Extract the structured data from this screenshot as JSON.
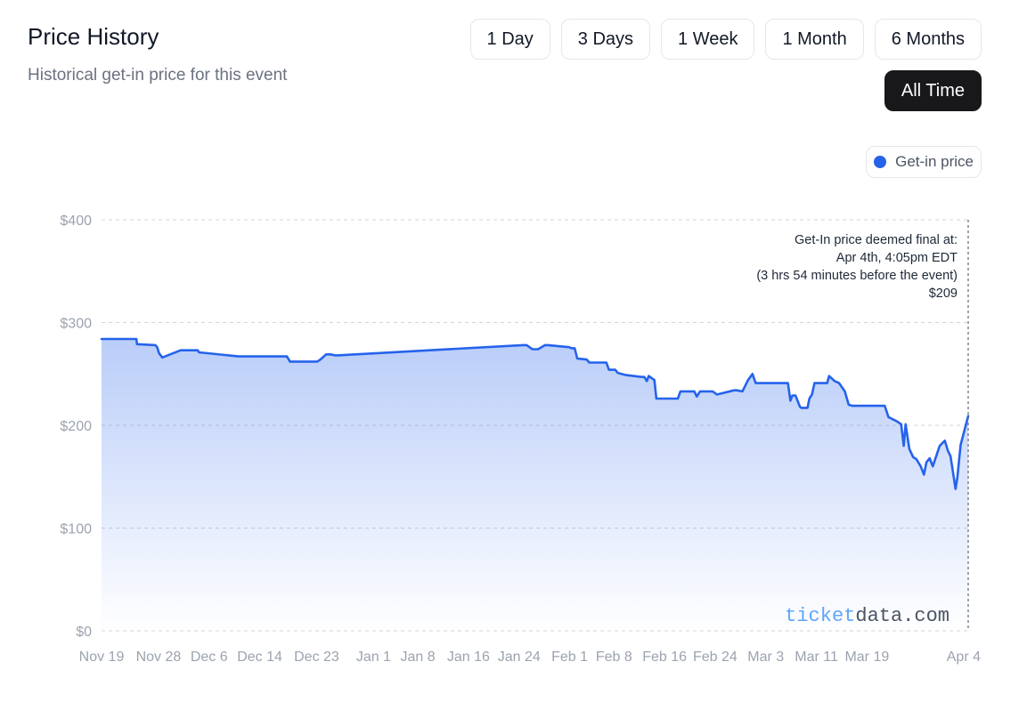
{
  "header": {
    "title": "Price History",
    "subtitle": "Historical get-in price for this event"
  },
  "ranges": [
    {
      "label": "1 Day",
      "active": false
    },
    {
      "label": "3 Days",
      "active": false
    },
    {
      "label": "1 Week",
      "active": false
    },
    {
      "label": "1 Month",
      "active": false
    },
    {
      "label": "6 Months",
      "active": false
    },
    {
      "label": "All Time",
      "active": true
    }
  ],
  "legend": {
    "label": "Get-in price",
    "color": "#2563eb"
  },
  "annotation": {
    "lines": [
      "Get-In price deemed final at:",
      "Apr 4th, 4:05pm EDT",
      "(3 hrs 54 minutes before the event)",
      "$209"
    ]
  },
  "watermark": {
    "part1": "ticket",
    "part2": "data.com",
    "color1": "#60a5fa",
    "color2": "#4b5563"
  },
  "chart_data": {
    "type": "area",
    "ylim": [
      0,
      400
    ],
    "yticks": [
      0,
      100,
      200,
      300,
      400
    ],
    "ytick_labels": [
      "$0",
      "$100",
      "$200",
      "$300",
      "$400"
    ],
    "x_tick_labels": [
      "Nov 19",
      "Nov 28",
      "Dec 6",
      "Dec 14",
      "Dec 23",
      "Jan 1",
      "Jan 8",
      "Jan 16",
      "Jan 24",
      "Feb 1",
      "Feb 8",
      "Feb 16",
      "Feb 24",
      "Mar 3",
      "Mar 11",
      "Mar 19",
      "Apr 4"
    ],
    "x_tick_days": [
      0,
      9,
      17,
      25,
      34,
      43,
      50,
      58,
      66,
      74,
      81,
      89,
      97,
      105,
      113,
      121,
      137
    ],
    "x_range_days": [
      0,
      137
    ],
    "grid": true,
    "series": [
      {
        "name": "Get-in price",
        "color": "#2563eb",
        "days": [
          0,
          5.5,
          5.6,
          8.5,
          8.8,
          9.1,
          9.6,
          12.5,
          15.2,
          15.4,
          21.7,
          22,
          29.3,
          29.8,
          34.1,
          34.6,
          35.5,
          36.2,
          37,
          66.6,
          67.2,
          68.1,
          69,
          70.1,
          70.6,
          73.9,
          74.3,
          74.8,
          75.2,
          76.7,
          77.1,
          79.8,
          80.2,
          81.2,
          81.6,
          82.8,
          85.4,
          85.8,
          86.2,
          86.5,
          87.4,
          87.7,
          91.1,
          91.5,
          93.7,
          94.1,
          94.6,
          96.6,
          97.3,
          100,
          100.4,
          101.3,
          102.2,
          102.9,
          103.4,
          104.2,
          104.5,
          108.5,
          108.9,
          109.2,
          109.7,
          110.4,
          110.6,
          111.6,
          111.9,
          112.3,
          112.7,
          114.7,
          115,
          115.9,
          116.6,
          117.5,
          118.1,
          118.7,
          123.8,
          124.4,
          125.7,
          126.4,
          126.8,
          127.1,
          127.7,
          128.3,
          128.8,
          129.5,
          130,
          130.4,
          130.9,
          131.4,
          132.5,
          133.3,
          133.8,
          134.2,
          135,
          135.3,
          135.8,
          137
        ],
        "values": [
          284,
          284,
          279,
          278,
          276,
          270,
          266,
          273,
          273,
          271,
          267,
          267,
          267,
          262,
          262,
          264,
          269,
          269,
          268,
          278,
          278,
          274,
          274,
          278,
          278,
          276,
          275,
          275,
          265,
          264,
          261,
          261,
          254,
          254,
          251,
          249,
          247,
          247,
          243,
          248,
          244,
          226,
          226,
          233,
          233,
          228,
          233,
          233,
          230,
          234,
          234,
          233,
          244,
          250,
          241,
          241,
          241,
          241,
          224,
          229,
          229,
          218,
          217,
          217,
          226,
          230,
          241,
          241,
          248,
          243,
          241,
          233,
          220,
          219,
          219,
          208,
          204,
          201,
          180,
          201,
          177,
          169,
          167,
          160,
          152,
          164,
          168,
          160,
          180,
          185,
          175,
          170,
          138,
          150,
          181,
          209
        ]
      }
    ]
  }
}
